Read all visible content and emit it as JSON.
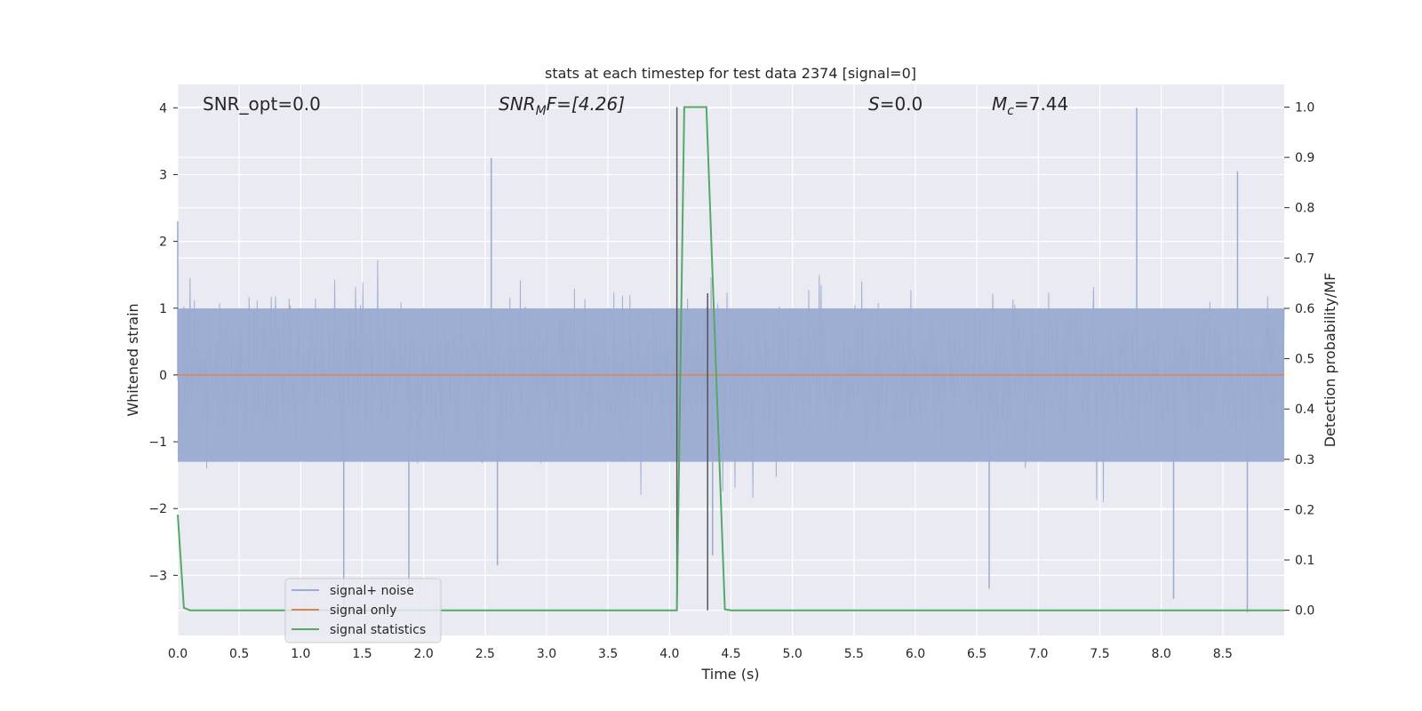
{
  "chart_data": {
    "type": "line",
    "title": "stats at each timestep for test data 2374 [signal=0]",
    "xlabel": "Time (s)",
    "ylabel": "Whitened strain",
    "y2label": "Detection probability/MF",
    "xlim": [
      0,
      9
    ],
    "ylim": [
      -3.9,
      4.35
    ],
    "y2lim": [
      -0.05,
      1.045
    ],
    "xticks": [
      "0.0",
      "0.5",
      "1.0",
      "1.5",
      "2.0",
      "2.5",
      "3.0",
      "3.5",
      "4.0",
      "4.5",
      "5.0",
      "5.5",
      "6.0",
      "6.5",
      "7.0",
      "7.5",
      "8.0",
      "8.5"
    ],
    "yticks": [
      "−3",
      "−2",
      "−1",
      "0",
      "1",
      "2",
      "3",
      "4"
    ],
    "y2ticks": [
      "0.0",
      "0.1",
      "0.2",
      "0.3",
      "0.4",
      "0.5",
      "0.6",
      "0.7",
      "0.8",
      "0.9",
      "1.0"
    ],
    "grid": true,
    "legend_position": "lower-left",
    "colors": {
      "noise": "#9aabd0",
      "signal": "#dd8452",
      "stat": "#55a868",
      "marker": "#555555",
      "bg": "#eaeaf2"
    },
    "annotations": {
      "snr_opt": "SNR_opt=0.0",
      "snr_mf_main": "SNR",
      "snr_mf_sub": "M",
      "snr_mf_rest": "F=[4.26]",
      "s_main": "S",
      "s_rest": "=0.0",
      "mc_main": "M",
      "mc_sub": "c",
      "mc_rest": "=7.44"
    },
    "series": [
      {
        "name": "signal+ noise",
        "color": "#9aabd0",
        "description": "whitened noise, approx. range -3.6 to 4.0",
        "env_lower": -1.3,
        "env_upper": 1.0,
        "peak_max": 4.0,
        "peak_min": -3.6
      },
      {
        "name": "signal only",
        "color": "#dd8452",
        "x": [
          0,
          9
        ],
        "y": [
          0,
          0
        ]
      },
      {
        "name": "signal statistics",
        "color": "#55a868",
        "axis": "right",
        "x": [
          0.0,
          0.05,
          0.1,
          0.2,
          4.06,
          4.12,
          4.2,
          4.3,
          4.45,
          4.5,
          9.0
        ],
        "y": [
          0.19,
          0.005,
          0.0,
          0.0,
          0.0,
          1.0,
          1.0,
          1.0,
          0.002,
          0.0,
          0.0
        ]
      }
    ],
    "vlines": [
      {
        "x": 4.06,
        "ymin": 0.0,
        "ymax": 1.0
      },
      {
        "x": 4.31,
        "ymin": 0.0,
        "ymax": 0.63
      }
    ]
  }
}
